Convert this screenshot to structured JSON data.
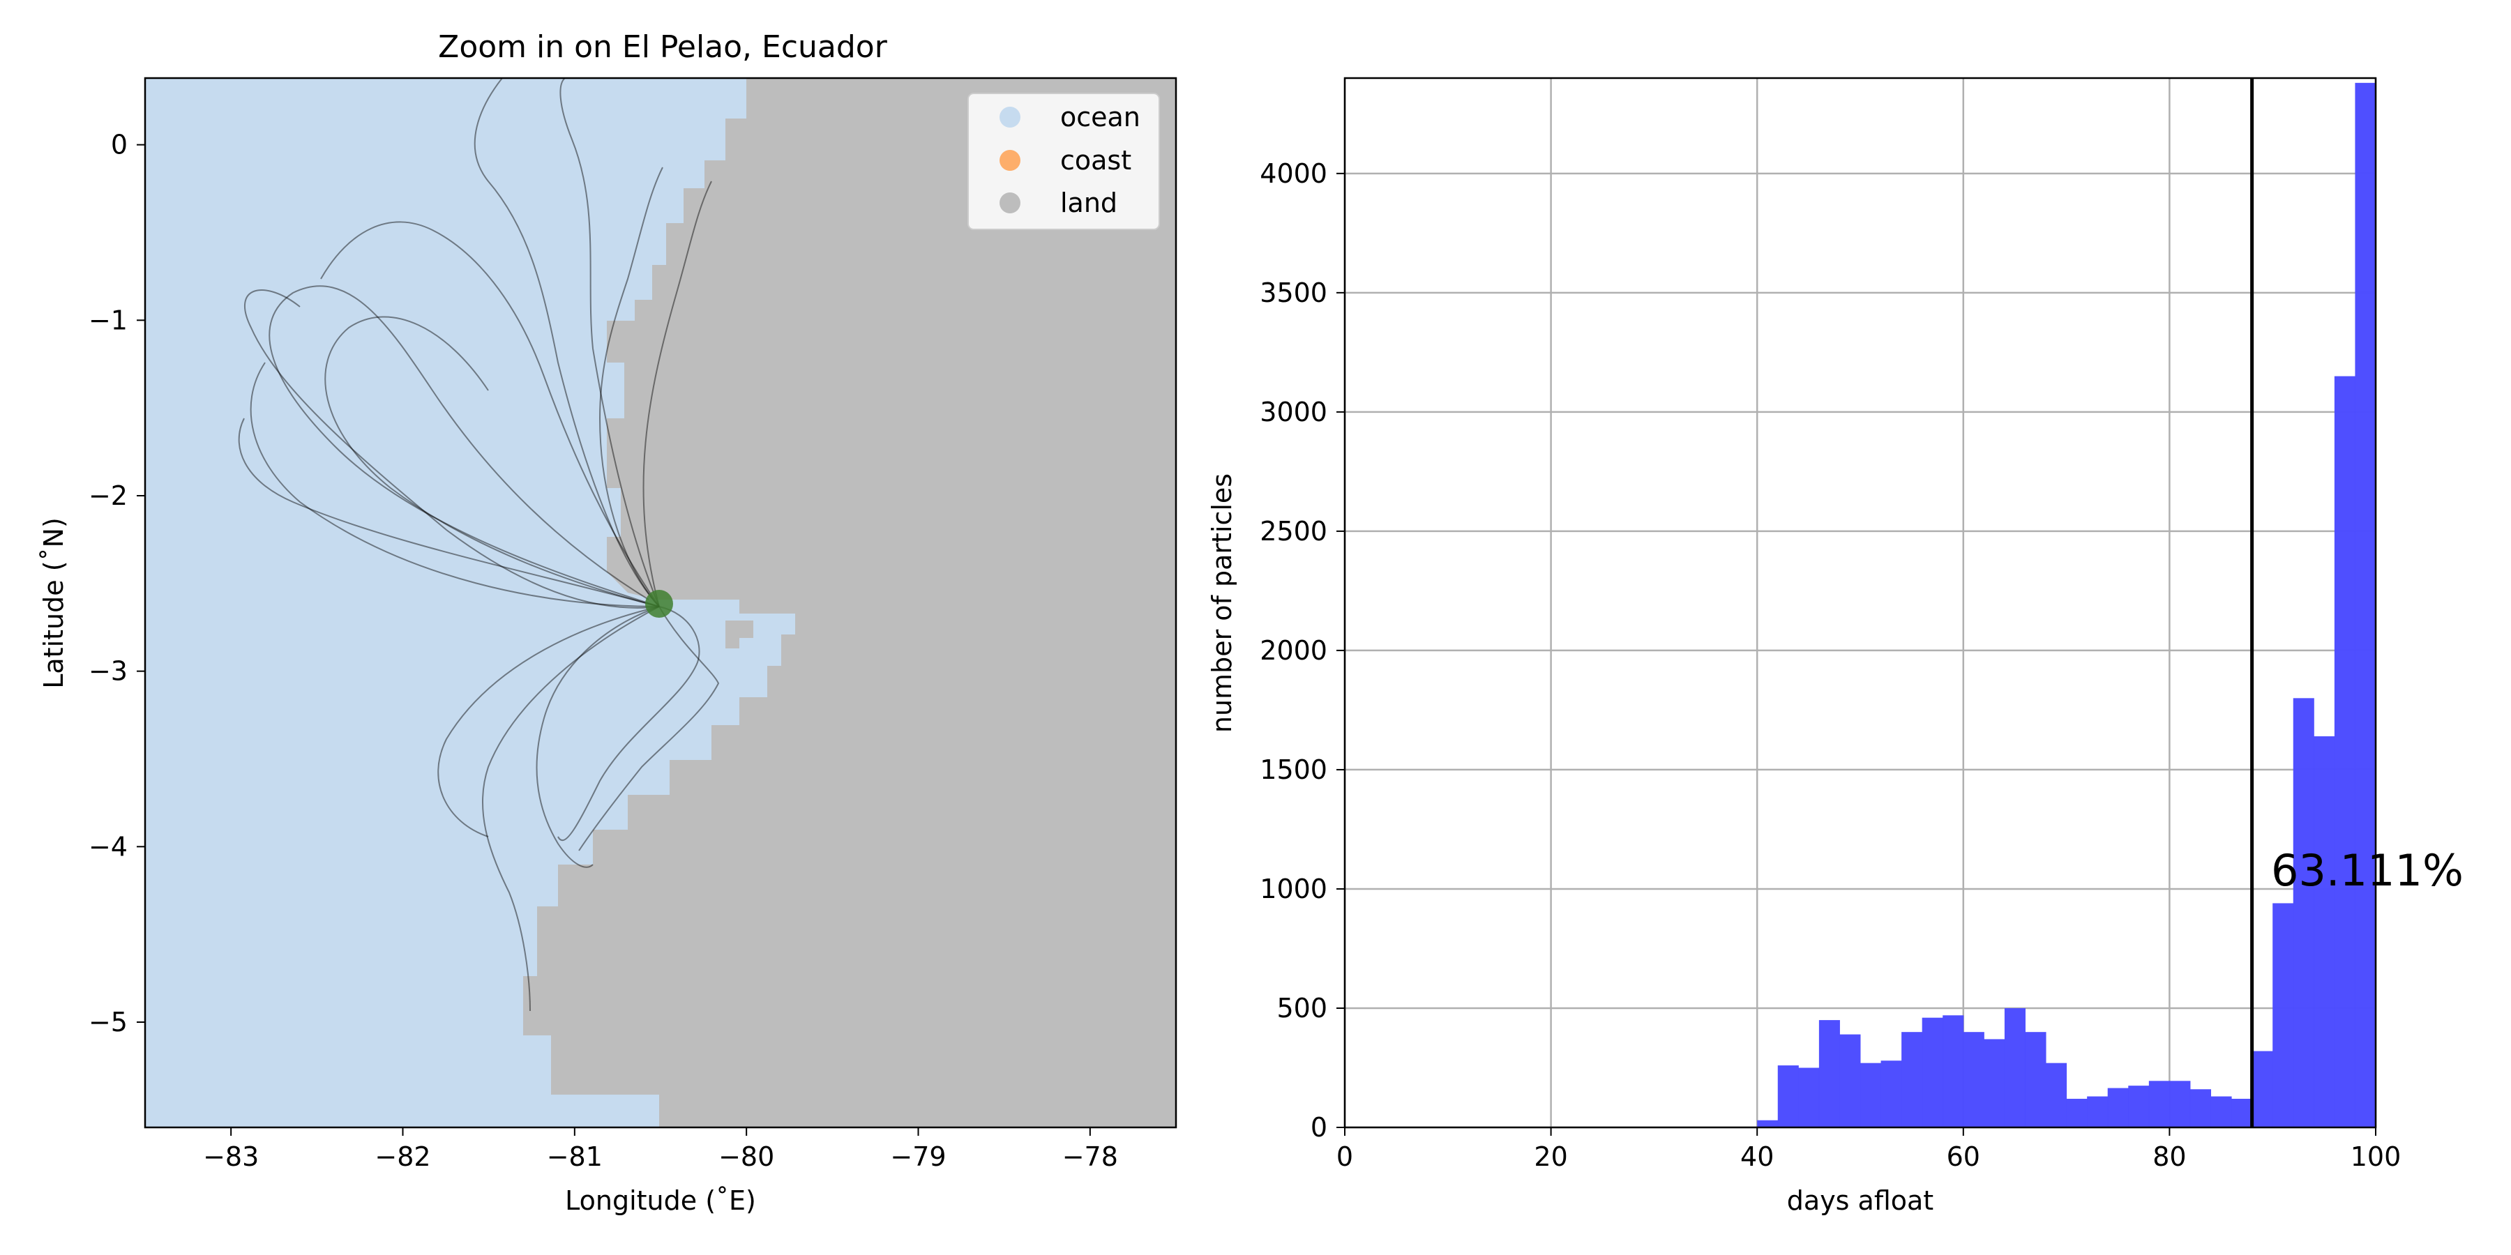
{
  "chart_data": [
    {
      "type": "map",
      "title": "Zoom in on El Pelao, Ecuador",
      "xlabel": "Longitude (˚E)",
      "ylabel": "Latitude (˚N)",
      "xlim": [
        -83.5,
        -77.5
      ],
      "ylim": [
        -5.6,
        0.38
      ],
      "xticks": [
        -83,
        -82,
        -81,
        -80,
        -79,
        -78
      ],
      "xtick_labels": [
        "−83",
        "−82",
        "−81",
        "−80",
        "−79",
        "−78"
      ],
      "yticks": [
        0,
        -1,
        -2,
        -3,
        -4,
        -5
      ],
      "ytick_labels": [
        "0",
        "−1",
        "−2",
        "−3",
        "−4",
        "−5"
      ],
      "legend": {
        "placement": "top-right",
        "entries": [
          {
            "label": "ocean",
            "color": "#c6dbef"
          },
          {
            "label": "coast",
            "color": "#fdae6b"
          },
          {
            "label": "land",
            "color": "#bdbdbd"
          }
        ]
      },
      "release_site": {
        "lon": -80.47,
        "lat": -2.63,
        "color": "#3f7f2f"
      },
      "track_color": "#000000"
    },
    {
      "type": "bar",
      "xlabel": "days afloat",
      "ylabel": "number of particles",
      "xlim": [
        0,
        100
      ],
      "ylim": [
        0,
        4400
      ],
      "xticks": [
        0,
        20,
        40,
        60,
        80,
        100
      ],
      "yticks": [
        0,
        500,
        1000,
        1500,
        2000,
        2500,
        3000,
        3500,
        4000
      ],
      "grid": true,
      "bar_color": "#4b4bff",
      "bin_width": 2,
      "bins": [
        40,
        42,
        44,
        46,
        48,
        50,
        52,
        54,
        56,
        58,
        60,
        62,
        64,
        66,
        68,
        70,
        72,
        74,
        76,
        78,
        80,
        82,
        84,
        86,
        88,
        90,
        92,
        94,
        96,
        98
      ],
      "values": [
        30,
        260,
        250,
        450,
        390,
        270,
        280,
        400,
        460,
        470,
        400,
        370,
        500,
        400,
        270,
        120,
        130,
        165,
        175,
        195,
        195,
        160,
        130,
        120,
        320,
        940,
        1800,
        1640,
        3150,
        4380
      ],
      "vline": 88,
      "annotation": "63.111%"
    }
  ]
}
